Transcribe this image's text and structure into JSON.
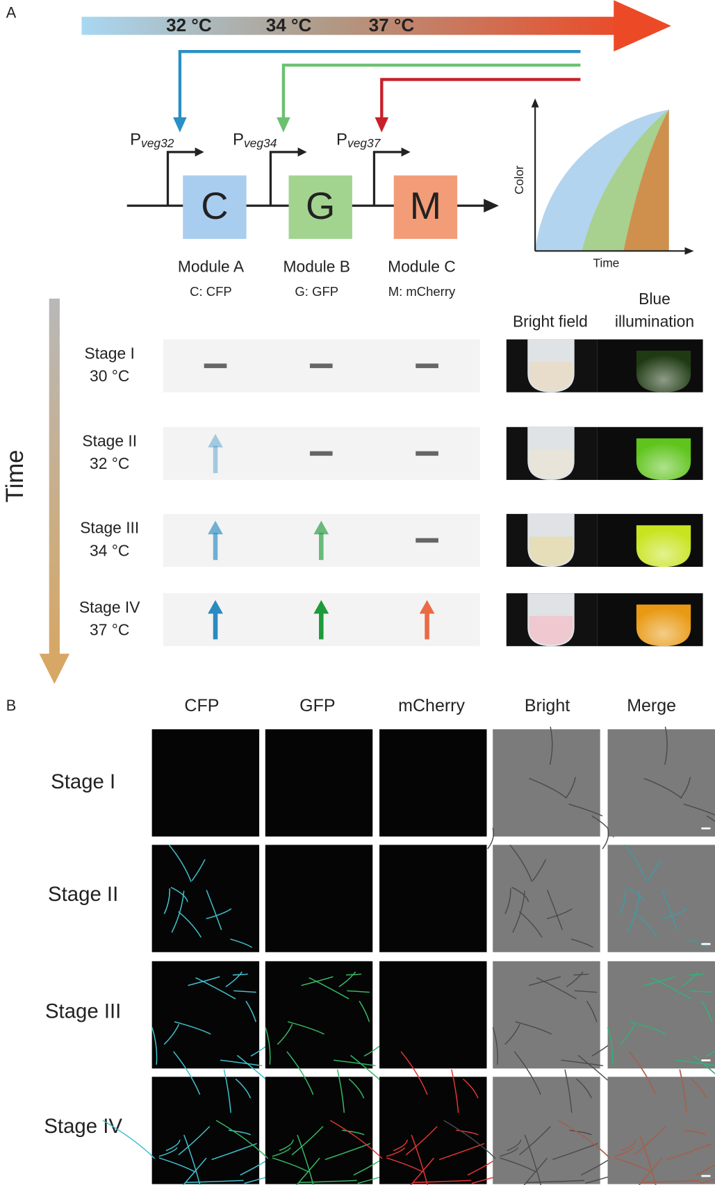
{
  "panel_a": {
    "label": "A",
    "temperatures": [
      "32 °C",
      "34 °C",
      "37 °C"
    ],
    "temperature_colors": [
      "#4f5863",
      "#7a5634",
      "#8a5430"
    ],
    "modules": [
      {
        "promoter": "P",
        "promoter_sub": "veg32",
        "letter": "C",
        "name": "Module A",
        "description": "C: CFP",
        "color": "#a9cdef",
        "line_color": "#2a8fc4",
        "arrow_color": "#2a8ac1"
      },
      {
        "promoter": "P",
        "promoter_sub": "veg34",
        "letter": "G",
        "name": "Module B",
        "description": "G: GFP",
        "color": "#a2d48f",
        "line_color": "#6cc070",
        "arrow_color": "#1f9a3a"
      },
      {
        "promoter": "P",
        "promoter_sub": "veg37",
        "letter": "M",
        "name": "Module C",
        "description": "M: mCherry",
        "color": "#f39c78",
        "line_color": "#c8202a",
        "arrow_color": "#ea6a45"
      }
    ],
    "inset": {
      "y_label": "Color",
      "x_label": "Time"
    },
    "time_label": "Time",
    "photo_headers": [
      "Bright field",
      "Blue",
      "illumination"
    ],
    "stages": [
      {
        "name": "Stage I",
        "temperature": "30 °C",
        "expression": [
          "off",
          "off",
          "off"
        ],
        "tube_color": "#e8dccb",
        "glow_color": "#1f3a12"
      },
      {
        "name": "Stage II",
        "temperature": "32 °C",
        "expression": [
          "low",
          "off",
          "off"
        ],
        "tube_color": "#e9e4da",
        "glow_color": "#5fc41c"
      },
      {
        "name": "Stage III",
        "temperature": "34 °C",
        "expression": [
          "mid",
          "mid",
          "off"
        ],
        "tube_color": "#e6ddb9",
        "glow_color": "#c8e420"
      },
      {
        "name": "Stage IV",
        "temperature": "37 °C",
        "expression": [
          "high",
          "high",
          "high"
        ],
        "tube_color": "#efc9cf",
        "glow_color": "#e99a14"
      }
    ]
  },
  "panel_b": {
    "label": "B",
    "columns": [
      "CFP",
      "GFP",
      "mCherry",
      "Bright",
      "Merge"
    ],
    "channel_colors": [
      "#3fc0cc",
      "#34b865",
      "#e23434"
    ],
    "rows": [
      "Stage I",
      "Stage II",
      "Stage III",
      "Stage IV"
    ]
  }
}
